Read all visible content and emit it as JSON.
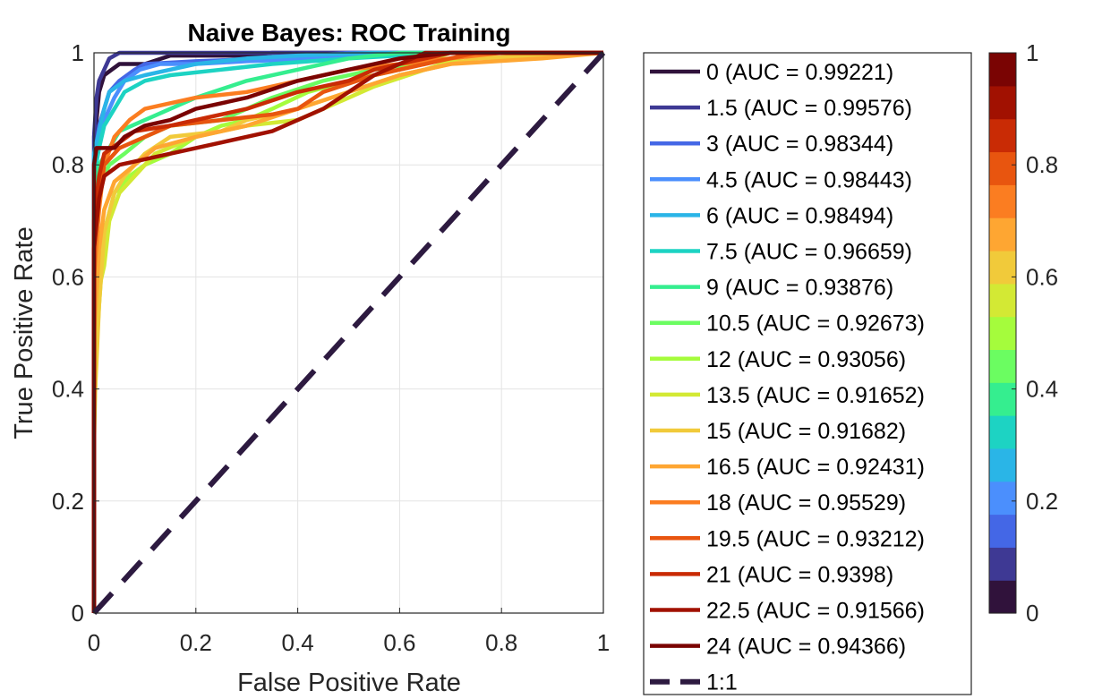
{
  "chart_data": {
    "type": "line",
    "title": "Naive Bayes: ROC Training",
    "xlabel": "False Positive Rate",
    "ylabel": "True Positive Rate",
    "xlim": [
      0,
      1
    ],
    "ylim": [
      0,
      1
    ],
    "xticks": [
      0,
      0.2,
      0.4,
      0.6,
      0.8,
      1
    ],
    "yticks": [
      0,
      0.2,
      0.4,
      0.6,
      0.8,
      1
    ],
    "xtick_labels": [
      "0",
      "0.2",
      "0.4",
      "0.6",
      "0.8",
      "1"
    ],
    "ytick_labels": [
      "0",
      "0.2",
      "0.4",
      "0.6",
      "0.8",
      "1"
    ],
    "grid": true,
    "legend_position": "outside-right",
    "series": [
      {
        "name": "0 (AUC = 0.99221)",
        "color": "#30123b",
        "x": [
          0,
          0,
          0.005,
          0.01,
          0.02,
          0.05,
          0.1,
          0.15,
          0.2,
          0.3,
          0.35,
          0.6,
          1
        ],
        "y": [
          0,
          0.8,
          0.88,
          0.93,
          0.96,
          0.98,
          0.98,
          0.995,
          0.995,
          0.995,
          1,
          1,
          1
        ]
      },
      {
        "name": "1.5 (AUC = 0.99576)",
        "color": "#3e3994",
        "x": [
          0,
          0,
          0.005,
          0.01,
          0.02,
          0.03,
          0.05,
          0.1,
          0.3,
          0.5,
          1
        ],
        "y": [
          0,
          0.85,
          0.92,
          0.95,
          0.97,
          0.99,
          1,
          1,
          1,
          1,
          1
        ]
      },
      {
        "name": "3 (AUC = 0.98344)",
        "color": "#4467e6",
        "x": [
          0,
          0,
          0.01,
          0.02,
          0.03,
          0.05,
          0.08,
          0.1,
          0.2,
          0.35,
          0.5,
          1
        ],
        "y": [
          0,
          0.8,
          0.87,
          0.9,
          0.93,
          0.95,
          0.97,
          0.98,
          0.985,
          0.99,
          1,
          1
        ]
      },
      {
        "name": "4.5 (AUC = 0.98443)",
        "color": "#4b8ffd",
        "x": [
          0,
          0,
          0.01,
          0.02,
          0.04,
          0.06,
          0.09,
          0.13,
          0.2,
          0.3,
          0.45,
          0.6,
          1
        ],
        "y": [
          0,
          0.8,
          0.85,
          0.88,
          0.92,
          0.95,
          0.97,
          0.98,
          0.98,
          0.985,
          0.99,
          1,
          1
        ]
      },
      {
        "name": "6 (AUC = 0.98494)",
        "color": "#2ab5e7",
        "x": [
          0,
          0,
          0.01,
          0.02,
          0.03,
          0.06,
          0.1,
          0.15,
          0.2,
          0.3,
          0.4,
          0.55,
          1
        ],
        "y": [
          0,
          0.82,
          0.86,
          0.9,
          0.93,
          0.95,
          0.96,
          0.97,
          0.98,
          0.99,
          0.995,
          1,
          1
        ]
      },
      {
        "name": "7.5 (AUC = 0.96659)",
        "color": "#1dd3c3",
        "x": [
          0,
          0,
          0.01,
          0.02,
          0.04,
          0.06,
          0.1,
          0.15,
          0.25,
          0.35,
          0.5,
          0.7,
          1
        ],
        "y": [
          0,
          0.78,
          0.83,
          0.87,
          0.9,
          0.93,
          0.95,
          0.96,
          0.97,
          0.98,
          0.99,
          1,
          1
        ]
      },
      {
        "name": "9 (AUC = 0.93876)",
        "color": "#35ee8f",
        "x": [
          0,
          0,
          0.01,
          0.03,
          0.05,
          0.1,
          0.15,
          0.2,
          0.3,
          0.4,
          0.5,
          0.6,
          1
        ],
        "y": [
          0,
          0.72,
          0.8,
          0.83,
          0.86,
          0.88,
          0.9,
          0.92,
          0.95,
          0.97,
          0.99,
          1,
          1
        ]
      },
      {
        "name": "10.5 (AUC = 0.92673)",
        "color": "#6bfd61",
        "x": [
          0,
          0,
          0.01,
          0.03,
          0.06,
          0.1,
          0.15,
          0.25,
          0.3,
          0.35,
          0.45,
          0.55,
          0.62,
          0.7,
          1
        ],
        "y": [
          0,
          0.68,
          0.76,
          0.8,
          0.82,
          0.85,
          0.87,
          0.88,
          0.9,
          0.92,
          0.95,
          0.97,
          0.98,
          1,
          1
        ]
      },
      {
        "name": "12 (AUC = 0.93056)",
        "color": "#a5fc3c",
        "x": [
          0,
          0,
          0.01,
          0.02,
          0.04,
          0.07,
          0.1,
          0.15,
          0.2,
          0.25,
          0.3,
          0.35,
          0.42,
          0.5,
          0.6,
          0.7,
          1
        ],
        "y": [
          0,
          0.4,
          0.55,
          0.68,
          0.75,
          0.78,
          0.8,
          0.82,
          0.85,
          0.87,
          0.88,
          0.9,
          0.93,
          0.95,
          0.97,
          1,
          1
        ]
      },
      {
        "name": "13.5 (AUC = 0.91652)",
        "color": "#d3e934",
        "x": [
          0,
          0,
          0.005,
          0.01,
          0.02,
          0.03,
          0.05,
          0.08,
          0.12,
          0.2,
          0.3,
          0.4,
          0.45,
          0.55,
          0.65,
          0.75,
          1
        ],
        "y": [
          0,
          0.3,
          0.5,
          0.58,
          0.62,
          0.7,
          0.75,
          0.78,
          0.82,
          0.85,
          0.87,
          0.88,
          0.9,
          0.94,
          0.97,
          1,
          1
        ]
      },
      {
        "name": "15 (AUC = 0.91682)",
        "color": "#f1ca3a",
        "x": [
          0,
          0,
          0.01,
          0.02,
          0.04,
          0.06,
          0.1,
          0.15,
          0.25,
          0.3,
          0.4,
          0.5,
          0.6,
          0.75,
          1
        ],
        "y": [
          0,
          0.35,
          0.55,
          0.68,
          0.75,
          0.78,
          0.82,
          0.85,
          0.86,
          0.88,
          0.9,
          0.93,
          0.96,
          0.99,
          1
        ]
      },
      {
        "name": "16.5 (AUC = 0.92431)",
        "color": "#fea632",
        "x": [
          0,
          0,
          0.01,
          0.02,
          0.04,
          0.08,
          0.12,
          0.2,
          0.3,
          0.4,
          0.5,
          0.6,
          0.7,
          0.88,
          1
        ],
        "y": [
          0,
          0.5,
          0.65,
          0.72,
          0.77,
          0.8,
          0.83,
          0.85,
          0.87,
          0.9,
          0.93,
          0.96,
          0.98,
          0.99,
          1
        ]
      },
      {
        "name": "18 (AUC = 0.95529)",
        "color": "#fb7d21",
        "x": [
          0,
          0,
          0.01,
          0.02,
          0.04,
          0.07,
          0.1,
          0.15,
          0.2,
          0.3,
          0.4,
          0.5,
          0.6,
          0.8,
          1
        ],
        "y": [
          0,
          0.6,
          0.72,
          0.8,
          0.85,
          0.88,
          0.9,
          0.91,
          0.92,
          0.93,
          0.95,
          0.97,
          0.98,
          1,
          1
        ]
      },
      {
        "name": "19.5 (AUC = 0.93212)",
        "color": "#e8550f",
        "x": [
          0,
          0,
          0.01,
          0.02,
          0.05,
          0.1,
          0.15,
          0.25,
          0.35,
          0.4,
          0.45,
          0.55,
          0.65,
          0.75,
          1
        ],
        "y": [
          0,
          0.65,
          0.75,
          0.8,
          0.83,
          0.85,
          0.87,
          0.88,
          0.89,
          0.9,
          0.93,
          0.96,
          0.98,
          1,
          1
        ]
      },
      {
        "name": "21 (AUC = 0.9398)",
        "color": "#c92b05",
        "x": [
          0,
          0,
          0.01,
          0.02,
          0.05,
          0.08,
          0.15,
          0.2,
          0.3,
          0.4,
          0.5,
          0.55,
          0.6,
          0.7,
          1
        ],
        "y": [
          0,
          0.7,
          0.78,
          0.82,
          0.84,
          0.86,
          0.87,
          0.88,
          0.9,
          0.93,
          0.95,
          0.97,
          0.98,
          1,
          1
        ]
      },
      {
        "name": "22.5 (AUC = 0.91566)",
        "color": "#a11101",
        "x": [
          0,
          0,
          0.01,
          0.02,
          0.05,
          0.1,
          0.15,
          0.2,
          0.25,
          0.35,
          0.45,
          0.5,
          0.55,
          0.6,
          0.65,
          1
        ],
        "y": [
          0,
          0.65,
          0.74,
          0.78,
          0.8,
          0.81,
          0.82,
          0.83,
          0.84,
          0.86,
          0.9,
          0.93,
          0.96,
          0.98,
          1,
          1
        ]
      },
      {
        "name": "24 (AUC = 0.94366)",
        "color": "#7a0403",
        "x": [
          0,
          0,
          0.005,
          0.01,
          0.02,
          0.04,
          0.06,
          0.1,
          0.15,
          0.2,
          0.3,
          0.4,
          0.5,
          0.6,
          0.7,
          1
        ],
        "y": [
          0,
          0.8,
          0.83,
          0.83,
          0.83,
          0.83,
          0.85,
          0.87,
          0.88,
          0.9,
          0.92,
          0.95,
          0.97,
          0.99,
          1,
          1
        ]
      },
      {
        "name": "1:1",
        "color": "#2d1a40",
        "dashed": true,
        "x": [
          0,
          1
        ],
        "y": [
          0,
          1
        ]
      }
    ],
    "colorbar": {
      "ticks": [
        0,
        0.2,
        0.4,
        0.6,
        0.8,
        1
      ],
      "tick_labels": [
        "0",
        "0.2",
        "0.4",
        "0.6",
        "0.8",
        "1"
      ],
      "colors": [
        "#30123b",
        "#3e3994",
        "#4467e6",
        "#4b8ffd",
        "#2ab5e7",
        "#1dd3c3",
        "#35ee8f",
        "#6bfd61",
        "#a5fc3c",
        "#d3e934",
        "#f1ca3a",
        "#fea632",
        "#fb7d21",
        "#e8550f",
        "#c92b05",
        "#a11101",
        "#7a0403"
      ]
    }
  }
}
